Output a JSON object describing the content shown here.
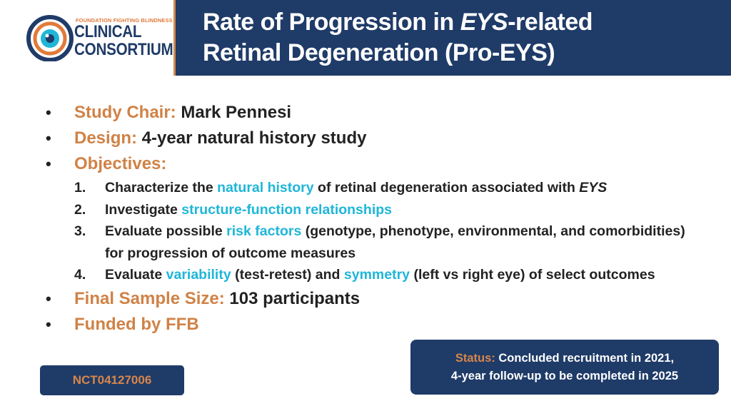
{
  "logo": {
    "small_text": "FOUNDATION FIGHTING BLINDNESS",
    "line1": "CLINICAL",
    "line2": "CONSORTIUM",
    "icon": "eye-icon"
  },
  "title": {
    "part1": "Rate of Progression in ",
    "part2_italic": "EYS",
    "part3": "-related",
    "line2": "Retinal Degeneration (Pro-EYS)"
  },
  "bullets": {
    "chair_label": "Study Chair:",
    "chair_value": " Mark Pennesi",
    "design_label": "Design:",
    "design_value": " 4-year natural history study",
    "objectives_label": "Objectives:",
    "sample_label": "Final Sample Size:",
    "sample_value": " 103 participants",
    "funded_label": "Funded by FFB"
  },
  "objectives": [
    {
      "num": "1.",
      "a": "Characterize the ",
      "hl": "natural history",
      "b": " of retinal degeneration associated with ",
      "it": "EYS"
    },
    {
      "num": "2.",
      "a": "Investigate ",
      "hl": "structure-function relationships"
    },
    {
      "num": "3.",
      "a": "Evaluate possible ",
      "hl": "risk factors",
      "b": " (genotype, phenotype, environmental, and comorbidities) for progression of outcome measures"
    },
    {
      "num": "4.",
      "a": "Evaluate ",
      "hl": "variability",
      "b": " (test-retest) and ",
      "hl2": "symmetry",
      "c": " (left vs right eye) of select outcomes"
    }
  ],
  "status": {
    "label": "Status:",
    "line1": " Concluded recruitment in 2021,",
    "line2": "4-year follow-up to be completed in 2025"
  },
  "nct": "NCT04127006",
  "colors": {
    "navy": "#1f3b68",
    "orange": "#d08246",
    "cyan": "#1fb6d8"
  }
}
